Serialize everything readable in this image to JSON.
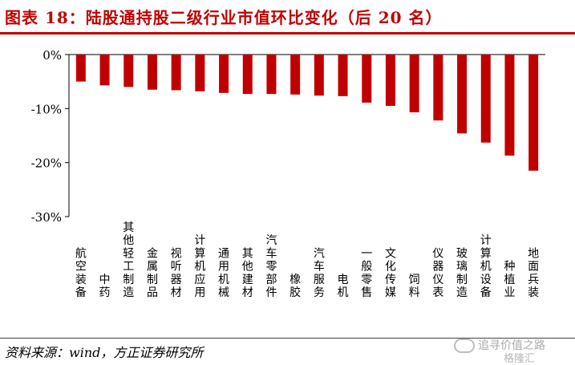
{
  "title": "图表 18：陆股通持股二级行业市值环比变化（后 20 名）",
  "source": "资料来源：wind，方正证券研究所",
  "watermark": {
    "name": "追寻价值之路",
    "sub": "格隆汇"
  },
  "colors": {
    "bar": "#c00000",
    "title": "#c00000",
    "axis": "#000000"
  },
  "chart_data": {
    "type": "bar",
    "categories": [
      "航空装备",
      "中药",
      "其他轻工制造",
      "金属制品",
      "视听器材",
      "计算机应用",
      "通用机械",
      "其他建材",
      "汽车零部件",
      "橡胶",
      "汽车服务",
      "电机",
      "一般零售",
      "文化传媒",
      "饲料",
      "仪器仪表",
      "玻璃制造",
      "计算机设备",
      "种植业",
      "地面兵装"
    ],
    "values": [
      -5.0,
      -5.7,
      -6.0,
      -6.5,
      -6.6,
      -6.8,
      -7.1,
      -7.3,
      -7.3,
      -7.4,
      -7.6,
      -7.7,
      -8.9,
      -9.5,
      -10.7,
      -12.2,
      -14.6,
      -16.3,
      -18.7,
      -21.5
    ],
    "ylim": [
      -30,
      0
    ],
    "yticks": [
      "0%",
      "-10%",
      "-20%",
      "-30%"
    ],
    "ytick_values": [
      0,
      -10,
      -20,
      -30
    ],
    "xlabel": "",
    "ylabel": "",
    "grid": false,
    "legend": "none"
  }
}
